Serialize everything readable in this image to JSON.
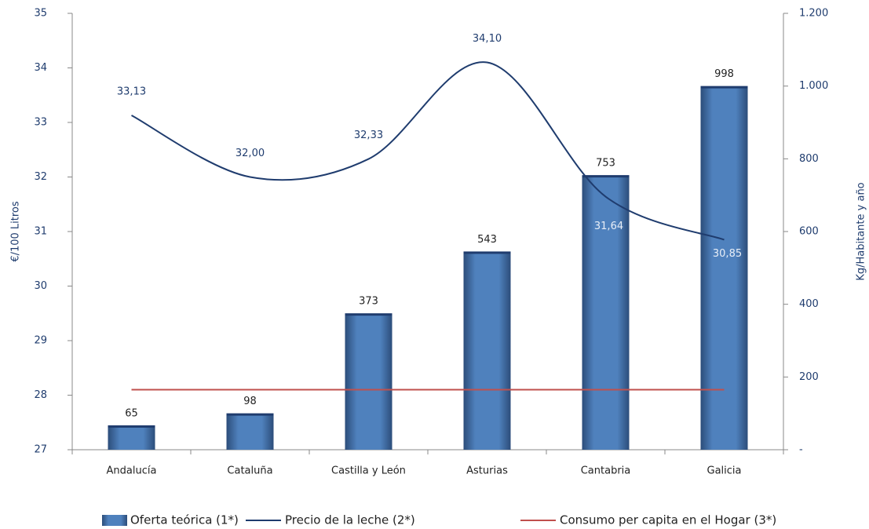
{
  "chart_data": {
    "type": "bar_line",
    "y_label": "€/100 Litros",
    "y2_label": "Kg/Habitante y año",
    "categories": [
      "Andalucía",
      "Cataluña",
      "Castilla y León",
      "Asturias",
      "Cantabria",
      "Galicia"
    ],
    "ylim": [
      27,
      35
    ],
    "yticks": [
      27,
      28,
      29,
      30,
      31,
      32,
      33,
      34,
      35
    ],
    "y2lim": [
      0,
      1200
    ],
    "y2ticks": [
      {
        "value": 0,
        "label": "-"
      },
      200,
      400,
      600,
      800,
      {
        "value": 1000,
        "label": "1.000"
      },
      {
        "value": 1200,
        "label": "1.200"
      }
    ],
    "series": [
      {
        "name": "Oferta teórica (1*)",
        "type": "bar",
        "axis": "y2",
        "color": "#4f81bd",
        "values": [
          65,
          98,
          373,
          543,
          753,
          998
        ]
      },
      {
        "name": "Precio de la leche (2*)",
        "type": "line",
        "axis": "y",
        "color": "#1f3c6e",
        "values": [
          33.13,
          32.0,
          32.33,
          34.1,
          31.64,
          30.85
        ],
        "value_labels": [
          "33,13",
          "32,00",
          "32,33",
          "34,10",
          "31,64",
          "30,85"
        ]
      },
      {
        "name": "Consumo per capita en el Hogar (3*)",
        "type": "line",
        "axis": "y2",
        "color": "#c0504d",
        "values": [
          165,
          165,
          165,
          165,
          165,
          165
        ]
      }
    ],
    "legend": "bottom"
  }
}
